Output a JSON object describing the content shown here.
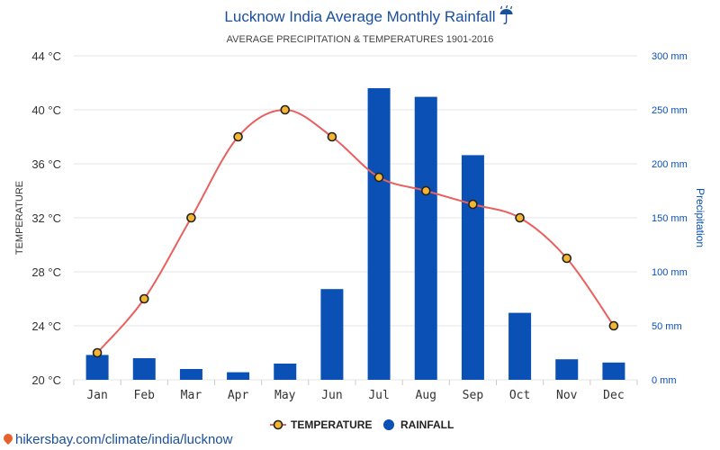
{
  "chart_data": {
    "type": "bar",
    "title": "Lucknow India Average Monthly Rainfall",
    "title_icon": "umbrella-rain-icon",
    "subtitle": "AVERAGE PRECIPITATION & TEMPERATURES 1901-2016",
    "categories": [
      "Jan",
      "Feb",
      "Mar",
      "Apr",
      "May",
      "Jun",
      "Jul",
      "Aug",
      "Sep",
      "Oct",
      "Nov",
      "Dec"
    ],
    "series": [
      {
        "name": "TEMPERATURE",
        "type": "line",
        "axis": "left",
        "color": "#e8615f",
        "marker_fill": "#f4b532",
        "values": [
          22,
          26,
          32,
          38,
          40,
          38,
          35,
          34,
          33,
          32,
          29,
          24
        ]
      },
      {
        "name": "RAINFALL",
        "type": "bar",
        "axis": "right",
        "color": "#0a50b5",
        "values": [
          23,
          20,
          10,
          7,
          15,
          84,
          270,
          262,
          208,
          62,
          19,
          16
        ]
      }
    ],
    "y_left": {
      "label": "TEMPERATURE",
      "ylim": [
        20,
        44
      ],
      "ticks": [
        20,
        24,
        28,
        32,
        36,
        40,
        44
      ],
      "tick_labels": [
        "20 °C",
        "24 °C",
        "28 °C",
        "32 °C",
        "36 °C",
        "40 °C",
        "44 °C"
      ]
    },
    "y_right": {
      "label": "Precipitation",
      "ylim": [
        0,
        300
      ],
      "ticks": [
        0,
        50,
        100,
        150,
        200,
        250,
        300
      ],
      "tick_labels": [
        "0 mm",
        "50 mm",
        "100 mm",
        "150 mm",
        "200 mm",
        "250 mm",
        "300 mm"
      ],
      "color": "#0a50b5"
    },
    "grid": true,
    "legend_position": "bottom-center"
  },
  "footer": {
    "link_text": "hikersbay.com/climate/india/lucknow",
    "icon": "location-pin-icon"
  }
}
